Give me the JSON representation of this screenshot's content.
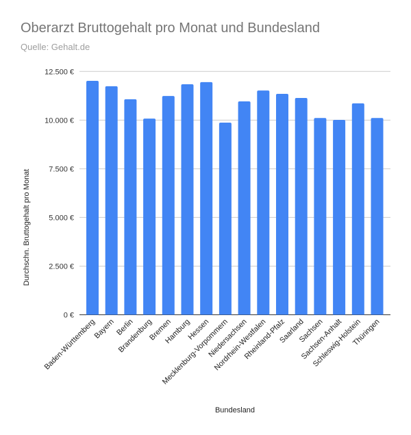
{
  "chart_data": {
    "type": "bar",
    "title": "Oberarzt Bruttogehalt pro Monat und Bundesland",
    "subtitle": "Quelle: Gehalt.de",
    "xlabel": "Bundesland",
    "ylabel": "Durchschn. Bruttogehalt pro Monat",
    "ylim": [
      0,
      12500
    ],
    "yticks": [
      0,
      2500,
      5000,
      7500,
      10000,
      12500
    ],
    "ytick_labels": [
      "0 €",
      "2.500 €",
      "5.000 €",
      "7.500 €",
      "10.000 €",
      "12.500 €"
    ],
    "grid": true,
    "bar_color": "#4285f4",
    "categories": [
      "Baden-Württemberg",
      "Bayern",
      "Berlin",
      "Brandenburg",
      "Bremen",
      "Hamburg",
      "Hessen",
      "Mecklenburg-Vorpommern",
      "Niedersachsen",
      "Nordrhein-Westfalen",
      "Rheinland-Pfalz",
      "Saarland",
      "Sachsen",
      "Sachsen-Anhalt",
      "Schleswig-Holstein",
      "Thüringen"
    ],
    "values": [
      12020,
      11740,
      11070,
      10080,
      11240,
      11840,
      11950,
      9870,
      10960,
      11520,
      11350,
      11140,
      10110,
      10010,
      10860,
      10110
    ]
  }
}
